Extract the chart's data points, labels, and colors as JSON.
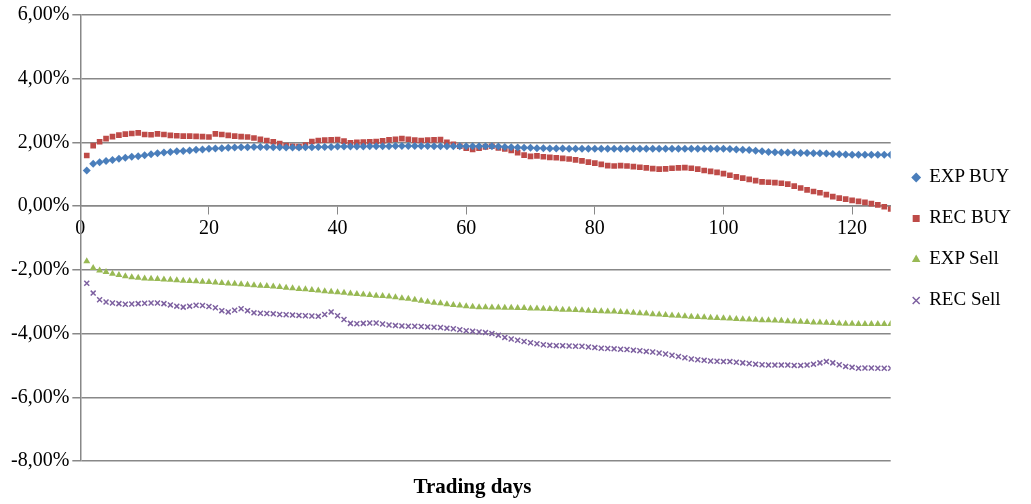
{
  "chart_data": {
    "type": "scatter",
    "xlabel": "Trading days",
    "x": [
      1,
      2,
      3,
      4,
      5,
      6,
      7,
      8,
      9,
      10,
      11,
      12,
      13,
      14,
      15,
      16,
      17,
      18,
      19,
      20,
      21,
      22,
      23,
      24,
      25,
      26,
      27,
      28,
      29,
      30,
      31,
      32,
      33,
      34,
      35,
      36,
      37,
      38,
      39,
      40,
      41,
      42,
      43,
      44,
      45,
      46,
      47,
      48,
      49,
      50,
      51,
      52,
      53,
      54,
      55,
      56,
      57,
      58,
      59,
      60,
      61,
      62,
      63,
      64,
      65,
      66,
      67,
      68,
      69,
      70,
      71,
      72,
      73,
      74,
      75,
      76,
      77,
      78,
      79,
      80,
      81,
      82,
      83,
      84,
      85,
      86,
      87,
      88,
      89,
      90,
      91,
      92,
      93,
      94,
      95,
      96,
      97,
      98,
      99,
      100,
      101,
      102,
      103,
      104,
      105,
      106,
      107,
      108,
      109,
      110,
      111,
      112,
      113,
      114,
      115,
      116,
      117,
      118,
      119,
      120,
      121,
      122,
      123,
      124,
      125,
      126
    ],
    "series": [
      {
        "name": "EXP BUY",
        "color": "#4a7ebb",
        "marker": "diamond",
        "values": [
          1.12,
          1.33,
          1.38,
          1.42,
          1.45,
          1.49,
          1.52,
          1.55,
          1.57,
          1.6,
          1.63,
          1.66,
          1.68,
          1.7,
          1.72,
          1.73,
          1.75,
          1.77,
          1.78,
          1.8,
          1.81,
          1.82,
          1.83,
          1.84,
          1.85,
          1.85,
          1.86,
          1.86,
          1.86,
          1.85,
          1.85,
          1.84,
          1.84,
          1.84,
          1.85,
          1.85,
          1.86,
          1.86,
          1.86,
          1.87,
          1.87,
          1.87,
          1.87,
          1.87,
          1.88,
          1.88,
          1.88,
          1.88,
          1.89,
          1.89,
          1.89,
          1.89,
          1.89,
          1.89,
          1.88,
          1.88,
          1.88,
          1.88,
          1.88,
          1.88,
          1.88,
          1.88,
          1.88,
          1.88,
          1.87,
          1.86,
          1.85,
          1.84,
          1.83,
          1.83,
          1.82,
          1.82,
          1.81,
          1.81,
          1.81,
          1.8,
          1.8,
          1.8,
          1.8,
          1.8,
          1.8,
          1.8,
          1.8,
          1.8,
          1.8,
          1.8,
          1.8,
          1.8,
          1.8,
          1.8,
          1.8,
          1.8,
          1.8,
          1.8,
          1.8,
          1.8,
          1.8,
          1.8,
          1.8,
          1.8,
          1.79,
          1.78,
          1.77,
          1.76,
          1.74,
          1.72,
          1.7,
          1.69,
          1.68,
          1.68,
          1.68,
          1.67,
          1.67,
          1.66,
          1.66,
          1.65,
          1.64,
          1.63,
          1.62,
          1.61,
          1.61,
          1.61,
          1.61,
          1.61,
          1.61,
          1.61
        ]
      },
      {
        "name": "REC BUY",
        "color": "#be4b48",
        "marker": "square",
        "values": [
          1.59,
          1.9,
          2.02,
          2.12,
          2.18,
          2.23,
          2.26,
          2.28,
          2.3,
          2.25,
          2.24,
          2.27,
          2.25,
          2.22,
          2.21,
          2.2,
          2.2,
          2.19,
          2.18,
          2.17,
          2.27,
          2.25,
          2.22,
          2.2,
          2.18,
          2.17,
          2.14,
          2.1,
          2.06,
          2.02,
          1.96,
          1.9,
          1.88,
          1.87,
          1.92,
          2.03,
          2.06,
          2.07,
          2.08,
          2.09,
          2.04,
          1.99,
          2.0,
          2.01,
          2.02,
          2.03,
          2.05,
          2.08,
          2.1,
          2.12,
          2.1,
          2.07,
          2.06,
          2.07,
          2.08,
          2.09,
          2.0,
          1.94,
          1.88,
          1.82,
          1.78,
          1.82,
          1.86,
          1.88,
          1.83,
          1.8,
          1.75,
          1.68,
          1.6,
          1.56,
          1.58,
          1.55,
          1.53,
          1.52,
          1.5,
          1.48,
          1.45,
          1.42,
          1.38,
          1.35,
          1.31,
          1.27,
          1.26,
          1.27,
          1.26,
          1.24,
          1.22,
          1.2,
          1.18,
          1.16,
          1.17,
          1.19,
          1.2,
          1.21,
          1.19,
          1.16,
          1.12,
          1.09,
          1.06,
          1.02,
          0.97,
          0.92,
          0.88,
          0.84,
          0.8,
          0.76,
          0.75,
          0.74,
          0.72,
          0.69,
          0.63,
          0.57,
          0.51,
          0.46,
          0.42,
          0.36,
          0.3,
          0.25,
          0.22,
          0.18,
          0.15,
          0.12,
          0.08,
          0.04,
          -0.02,
          -0.09
        ]
      },
      {
        "name": "EXP Sell",
        "color": "#98b954",
        "marker": "triangle",
        "values": [
          -1.73,
          -1.94,
          -2.02,
          -2.07,
          -2.12,
          -2.16,
          -2.2,
          -2.23,
          -2.25,
          -2.27,
          -2.28,
          -2.29,
          -2.3,
          -2.31,
          -2.33,
          -2.34,
          -2.35,
          -2.36,
          -2.37,
          -2.38,
          -2.4,
          -2.41,
          -2.43,
          -2.44,
          -2.45,
          -2.47,
          -2.48,
          -2.5,
          -2.51,
          -2.52,
          -2.54,
          -2.56,
          -2.58,
          -2.6,
          -2.61,
          -2.63,
          -2.65,
          -2.67,
          -2.69,
          -2.7,
          -2.72,
          -2.74,
          -2.76,
          -2.77,
          -2.79,
          -2.81,
          -2.82,
          -2.84,
          -2.86,
          -2.89,
          -2.91,
          -2.94,
          -2.97,
          -3.0,
          -3.03,
          -3.05,
          -3.08,
          -3.1,
          -3.12,
          -3.14,
          -3.16,
          -3.17,
          -3.17,
          -3.18,
          -3.18,
          -3.19,
          -3.19,
          -3.2,
          -3.2,
          -3.21,
          -3.21,
          -3.22,
          -3.23,
          -3.24,
          -3.25,
          -3.25,
          -3.26,
          -3.27,
          -3.28,
          -3.29,
          -3.3,
          -3.31,
          -3.31,
          -3.32,
          -3.33,
          -3.35,
          -3.36,
          -3.37,
          -3.39,
          -3.4,
          -3.42,
          -3.43,
          -3.44,
          -3.46,
          -3.47,
          -3.48,
          -3.49,
          -3.5,
          -3.51,
          -3.52,
          -3.53,
          -3.54,
          -3.55,
          -3.56,
          -3.57,
          -3.58,
          -3.58,
          -3.59,
          -3.6,
          -3.61,
          -3.62,
          -3.63,
          -3.64,
          -3.65,
          -3.65,
          -3.66,
          -3.67,
          -3.68,
          -3.69,
          -3.69,
          -3.7,
          -3.7,
          -3.7,
          -3.7,
          -3.7,
          -3.7
        ]
      },
      {
        "name": "REC Sell",
        "color": "#7d60a0",
        "marker": "cross",
        "values": [
          -2.42,
          -2.73,
          -2.94,
          -3.01,
          -3.04,
          -3.06,
          -3.08,
          -3.07,
          -3.06,
          -3.05,
          -3.04,
          -3.04,
          -3.06,
          -3.1,
          -3.14,
          -3.17,
          -3.14,
          -3.11,
          -3.12,
          -3.15,
          -3.19,
          -3.28,
          -3.32,
          -3.27,
          -3.22,
          -3.28,
          -3.35,
          -3.36,
          -3.37,
          -3.38,
          -3.4,
          -3.41,
          -3.42,
          -3.43,
          -3.44,
          -3.45,
          -3.46,
          -3.4,
          -3.32,
          -3.44,
          -3.56,
          -3.68,
          -3.69,
          -3.68,
          -3.67,
          -3.67,
          -3.7,
          -3.73,
          -3.75,
          -3.76,
          -3.77,
          -3.77,
          -3.78,
          -3.79,
          -3.8,
          -3.81,
          -3.83,
          -3.85,
          -3.88,
          -3.91,
          -3.93,
          -3.95,
          -3.97,
          -4.0,
          -4.05,
          -4.12,
          -4.17,
          -4.21,
          -4.25,
          -4.29,
          -4.32,
          -4.35,
          -4.37,
          -4.38,
          -4.38,
          -4.39,
          -4.4,
          -4.4,
          -4.42,
          -4.44,
          -4.46,
          -4.47,
          -4.48,
          -4.49,
          -4.5,
          -4.52,
          -4.54,
          -4.56,
          -4.58,
          -4.61,
          -4.64,
          -4.68,
          -4.72,
          -4.76,
          -4.8,
          -4.82,
          -4.84,
          -4.86,
          -4.87,
          -4.88,
          -4.88,
          -4.9,
          -4.92,
          -4.94,
          -4.96,
          -4.98,
          -4.99,
          -4.99,
          -4.99,
          -4.99,
          -5.0,
          -5.0,
          -4.99,
          -4.96,
          -4.92,
          -4.88,
          -4.92,
          -4.98,
          -5.03,
          -5.06,
          -5.09,
          -5.08,
          -5.08,
          -5.09,
          -5.09,
          -5.09
        ]
      }
    ],
    "xlim": [
      0,
      126
    ],
    "xticks": [
      0,
      20,
      40,
      60,
      80,
      100,
      120
    ],
    "ylim": [
      -8,
      6
    ],
    "yticks": [
      {
        "value": -8,
        "label": "-8,00%"
      },
      {
        "value": -6,
        "label": "-6,00%"
      },
      {
        "value": -4,
        "label": "-4,00%"
      },
      {
        "value": -2,
        "label": "-2,00%"
      },
      {
        "value": 0,
        "label": "0,00%"
      },
      {
        "value": 2,
        "label": "2,00%"
      },
      {
        "value": 4,
        "label": "4,00%"
      },
      {
        "value": 6,
        "label": "6,00%"
      }
    ],
    "grid": "y",
    "legend": "right"
  }
}
